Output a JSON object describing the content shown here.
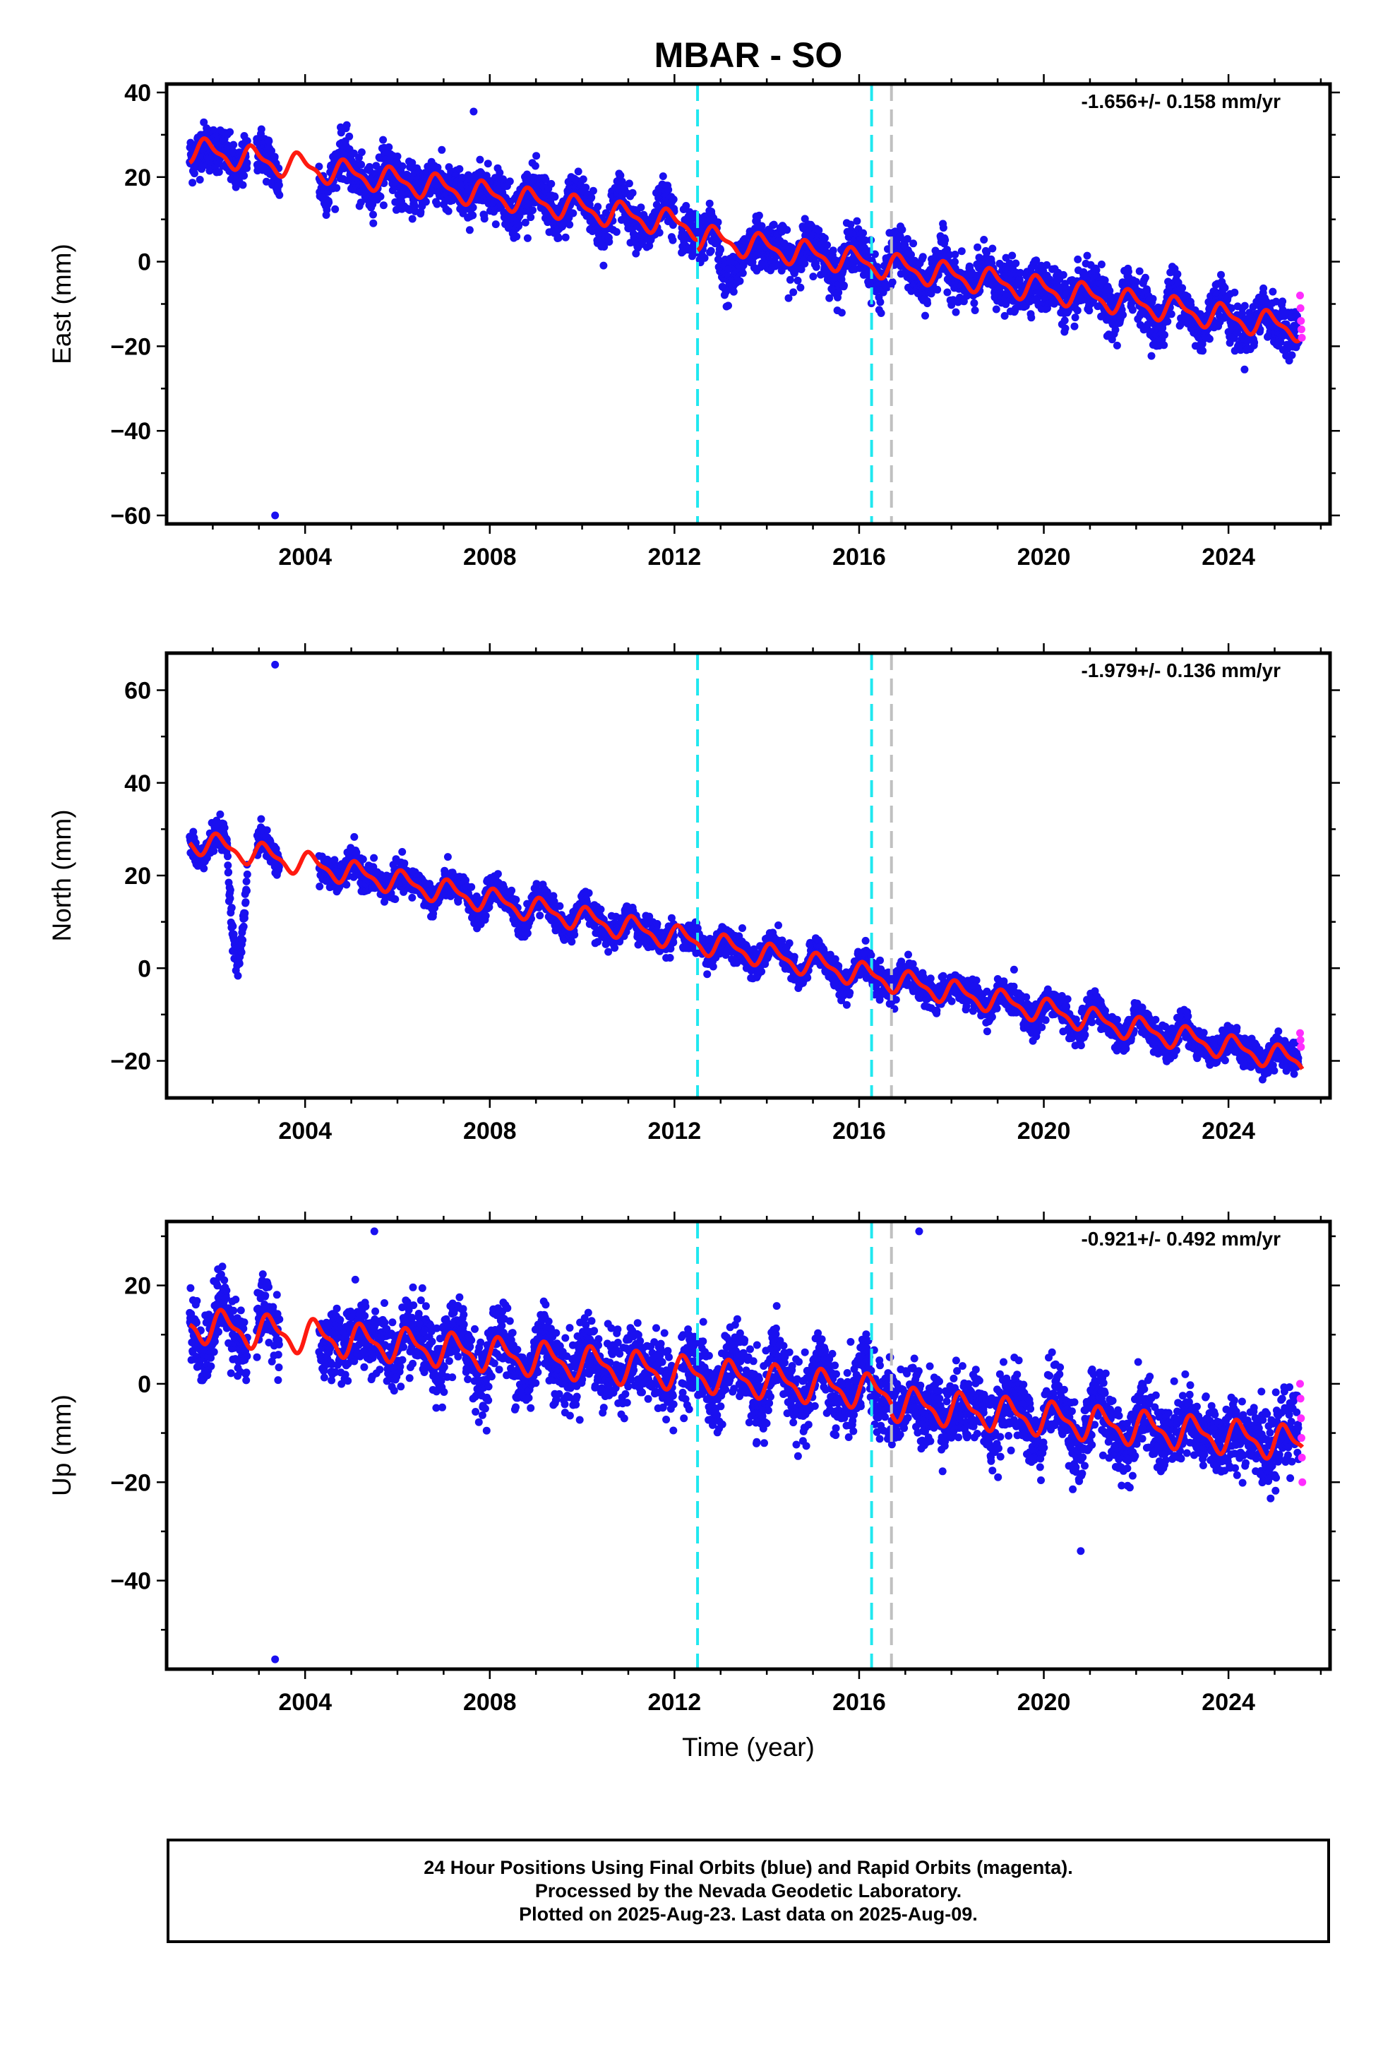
{
  "title": "MBAR - SO",
  "caption": {
    "line1": "24 Hour Positions Using Final Orbits (blue) and Rapid Orbits (magenta).",
    "line2": "Processed by the Nevada Geodetic Laboratory.",
    "line3": "Plotted on 2025-Aug-23. Last data on 2025-Aug-09."
  },
  "colors": {
    "final_orbits": "#1a10f0",
    "rapid_orbits": "#ff2cff",
    "model": "#ff1a10",
    "event_cyan": "#20e8f0",
    "event_gray": "#c0c0c0"
  },
  "chart_data": [
    {
      "type": "scatter",
      "ylabel": "East (mm)",
      "xlabel": "",
      "xlim": [
        2001.0,
        2026.2
      ],
      "ylim": [
        -62,
        42
      ],
      "yticks": [
        40,
        20,
        0,
        -20,
        -40,
        -60
      ],
      "xticks": [
        2004,
        2008,
        2012,
        2016,
        2020,
        2024
      ],
      "rate_label": "-1.656+/- 0.158 mm/yr",
      "event_lines": [
        {
          "x": 2012.5,
          "color": "cyan"
        },
        {
          "x": 2016.27,
          "color": "cyan"
        },
        {
          "x": 2016.7,
          "color": "gray"
        }
      ],
      "outliers": [
        {
          "x": 2003.35,
          "y": -60
        },
        {
          "x": 2007.65,
          "y": 35.5
        }
      ],
      "model_segments": [
        {
          "x0": 2001.5,
          "x1": 2012.5,
          "y0": 26.5,
          "rate": -1.656,
          "amplitude": 2.6,
          "phase": 0.35
        },
        {
          "x0": 2012.5,
          "x1": 2025.6,
          "y0": 5.8,
          "rate": -1.656,
          "amplitude": 2.6,
          "phase": 0.35
        }
      ],
      "final_orbits_scatter": 5,
      "rapid_orbits": [
        {
          "x": 2025.55,
          "y": -8
        },
        {
          "x": 2025.56,
          "y": -11
        },
        {
          "x": 2025.57,
          "y": -14
        },
        {
          "x": 2025.58,
          "y": -16
        },
        {
          "x": 2025.59,
          "y": -18
        }
      ],
      "series": [
        {
          "name": "Final Orbits",
          "role": "daily positions"
        },
        {
          "name": "Rapid Orbits",
          "role": "daily positions"
        },
        {
          "name": "Model",
          "role": "fitted trend with annual/semiannual terms"
        }
      ]
    },
    {
      "type": "scatter",
      "ylabel": "North (mm)",
      "xlabel": "",
      "xlim": [
        2001.0,
        2026.2
      ],
      "ylim": [
        -28,
        68
      ],
      "yticks": [
        60,
        40,
        20,
        0,
        -20
      ],
      "xticks": [
        2004,
        2008,
        2012,
        2016,
        2020,
        2024
      ],
      "rate_label": "-1.979+/- 0.136 mm/yr",
      "event_lines": [
        {
          "x": 2012.5,
          "color": "cyan"
        },
        {
          "x": 2016.27,
          "color": "cyan"
        },
        {
          "x": 2016.7,
          "color": "gray"
        }
      ],
      "outliers": [
        {
          "x": 2003.35,
          "y": 65.5
        }
      ],
      "model_segments": [
        {
          "x0": 2001.5,
          "x1": 2025.6,
          "y0": 27.5,
          "rate": -1.979,
          "amplitude": 2.2,
          "phase": 0.1
        }
      ],
      "final_orbits_scatter": 2.8,
      "rapid_orbits": [
        {
          "x": 2025.55,
          "y": -14
        },
        {
          "x": 2025.56,
          "y": -15.5
        },
        {
          "x": 2025.57,
          "y": -17
        }
      ],
      "series": [
        {
          "name": "Final Orbits",
          "role": "daily positions"
        },
        {
          "name": "Rapid Orbits",
          "role": "daily positions"
        },
        {
          "name": "Model",
          "role": "fitted trend with annual/semiannual terms"
        }
      ]
    },
    {
      "type": "scatter",
      "ylabel": "Up (mm)",
      "xlabel": "Time (year)",
      "xlim": [
        2001.0,
        2026.2
      ],
      "ylim": [
        -58,
        33
      ],
      "yticks": [
        20,
        0,
        -20,
        -40
      ],
      "xticks": [
        2004,
        2008,
        2012,
        2016,
        2020,
        2024
      ],
      "rate_label": "-0.921+/- 0.492 mm/yr",
      "event_lines": [
        {
          "x": 2012.5,
          "color": "cyan"
        },
        {
          "x": 2016.27,
          "color": "cyan"
        },
        {
          "x": 2016.7,
          "color": "gray"
        }
      ],
      "outliers": [
        {
          "x": 2003.35,
          "y": -56
        },
        {
          "x": 2005.5,
          "y": 31
        },
        {
          "x": 2017.3,
          "y": 31
        },
        {
          "x": 2020.8,
          "y": -34
        }
      ],
      "model_segments": [
        {
          "x0": 2001.5,
          "x1": 2016.7,
          "y0": 12,
          "rate": -0.921,
          "amplitude": 3.0,
          "phase": 0.0
        },
        {
          "x0": 2016.7,
          "x1": 2019.9,
          "y0": -4,
          "rate": -0.921,
          "amplitude": 3.0,
          "phase": 0.0
        },
        {
          "x0": 2019.9,
          "x1": 2025.6,
          "y0": -7,
          "rate": -0.921,
          "amplitude": 3.0,
          "phase": 0.0
        }
      ],
      "final_orbits_scatter": 6.5,
      "rapid_orbits": [
        {
          "x": 2025.55,
          "y": 0
        },
        {
          "x": 2025.56,
          "y": -3
        },
        {
          "x": 2025.57,
          "y": -7
        },
        {
          "x": 2025.58,
          "y": -11
        },
        {
          "x": 2025.59,
          "y": -15
        },
        {
          "x": 2025.6,
          "y": -20
        }
      ],
      "series": [
        {
          "name": "Final Orbits",
          "role": "daily positions"
        },
        {
          "name": "Rapid Orbits",
          "role": "daily positions"
        },
        {
          "name": "Model",
          "role": "fitted trend with annual/semiannual terms"
        }
      ]
    }
  ]
}
